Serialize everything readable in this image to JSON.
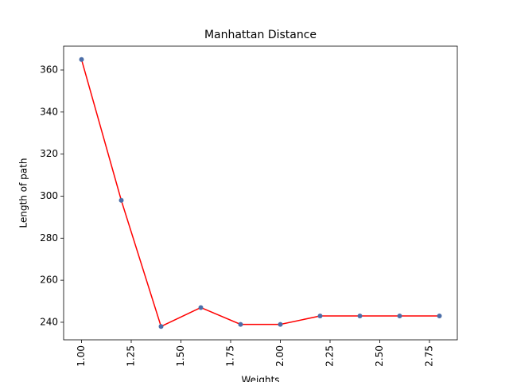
{
  "chart_data": {
    "type": "line",
    "title": "Manhattan Distance",
    "x_label": "Weights",
    "y_label": "Length of path",
    "x": [
      1.0,
      1.2,
      1.4,
      1.6,
      1.8,
      2.0,
      2.2,
      2.4,
      2.6,
      2.8
    ],
    "series": [
      {
        "color": "red",
        "marker_color": "#4c6ea8",
        "values": [
          365,
          298,
          238,
          247,
          239,
          239,
          243,
          243,
          243,
          243
        ]
      }
    ],
    "xlim": [
      0.91,
      2.89
    ],
    "xticks": [
      {
        "value": 1.0,
        "label": "1.00"
      },
      {
        "value": 1.25,
        "label": "1.25"
      },
      {
        "value": 1.5,
        "label": "1.50"
      },
      {
        "value": 1.75,
        "label": "1.75"
      },
      {
        "value": 2.0,
        "label": "2.00"
      },
      {
        "value": 2.25,
        "label": "2.25"
      },
      {
        "value": 2.5,
        "label": "2.50"
      },
      {
        "value": 2.75,
        "label": "2.75"
      }
    ],
    "ylim": [
      231.65,
      371.35
    ],
    "yticks": [
      240,
      260,
      280,
      300,
      320,
      340,
      360
    ]
  }
}
